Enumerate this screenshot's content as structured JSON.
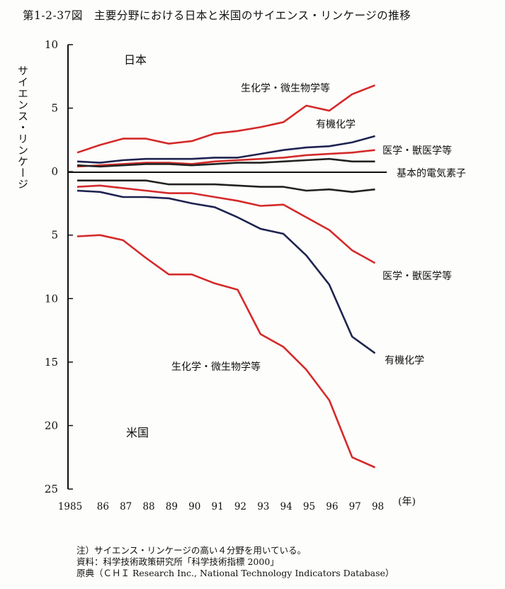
{
  "title": "第1-2-37図　主要分野における日本と米国のサイエンス・リンケージの推移",
  "chart_data": {
    "type": "line",
    "ylabel": "サイエンス・リンケージ",
    "xlabel": "(年)",
    "x": [
      "1985",
      "86",
      "87",
      "88",
      "89",
      "90",
      "91",
      "92",
      "93",
      "94",
      "95",
      "96",
      "97",
      "98"
    ],
    "ylim": [
      -25,
      10
    ],
    "yticks": [
      10,
      5,
      0,
      -5,
      -10,
      -15,
      -20,
      -25
    ],
    "ytick_labels": [
      "10",
      "5",
      "0",
      "5",
      "10",
      "15",
      "20",
      "25"
    ],
    "grid": false,
    "legend": "none",
    "region_labels": {
      "japan": "日本",
      "usa": "米国"
    },
    "series": [
      {
        "name": "生化学・微生物学等",
        "region": "japan",
        "color": "#d42a2a",
        "values": [
          1.5,
          2.1,
          2.6,
          2.6,
          2.2,
          2.4,
          3.0,
          3.2,
          3.5,
          3.9,
          5.2,
          4.8,
          6.1,
          6.8
        ]
      },
      {
        "name": "有機化学",
        "region": "japan",
        "color": "#1f2350",
        "values": [
          0.8,
          0.7,
          0.9,
          1.0,
          1.0,
          1.0,
          1.1,
          1.1,
          1.4,
          1.7,
          1.9,
          2.0,
          2.3,
          2.8
        ]
      },
      {
        "name": "医学・獣医学等",
        "region": "japan",
        "color": "#d42a2a",
        "values": [
          0.4,
          0.5,
          0.6,
          0.7,
          0.7,
          0.6,
          0.8,
          0.9,
          1.0,
          1.1,
          1.3,
          1.4,
          1.5,
          1.7
        ]
      },
      {
        "name": "基本的電気素子",
        "region": "japan",
        "color": "#222222",
        "values": [
          0.5,
          0.4,
          0.5,
          0.6,
          0.6,
          0.5,
          0.6,
          0.7,
          0.7,
          0.8,
          0.9,
          1.0,
          0.8,
          0.8
        ]
      },
      {
        "name": "基本的電気素子",
        "region": "usa",
        "color": "#222222",
        "values": [
          -0.7,
          -0.7,
          -0.7,
          -0.7,
          -1.0,
          -1.0,
          -1.0,
          -1.1,
          -1.2,
          -1.2,
          -1.5,
          -1.4,
          -1.6,
          -1.4
        ]
      },
      {
        "name": "医学・獣医学等",
        "region": "usa",
        "color": "#d42a2a",
        "values": [
          -1.2,
          -1.1,
          -1.3,
          -1.5,
          -1.7,
          -1.7,
          -2.0,
          -2.3,
          -2.7,
          -2.6,
          -3.6,
          -4.6,
          -6.2,
          -7.2
        ]
      },
      {
        "name": "有機化学",
        "region": "usa",
        "color": "#1f2350",
        "values": [
          -1.5,
          -1.6,
          -2.0,
          -2.0,
          -2.1,
          -2.5,
          -2.8,
          -3.6,
          -4.5,
          -4.9,
          -6.6,
          -8.9,
          -13.0,
          -14.3
        ]
      },
      {
        "name": "生化学・微生物学等",
        "region": "usa",
        "color": "#d42a2a",
        "values": [
          -5.1,
          -5.0,
          -5.4,
          -6.8,
          -8.1,
          -8.1,
          -8.8,
          -9.3,
          -12.8,
          -13.8,
          -15.6,
          -18.0,
          -22.5,
          -23.3
        ]
      }
    ]
  },
  "notes": {
    "note": "注）サイエンス・リンケージの高い４分野を用いている。",
    "source": "資料：科学技術政策研究所「科学技術指標 2000」",
    "origin": "原典（ＣＨＩ Research Inc., National Technology Indicators Database）"
  }
}
